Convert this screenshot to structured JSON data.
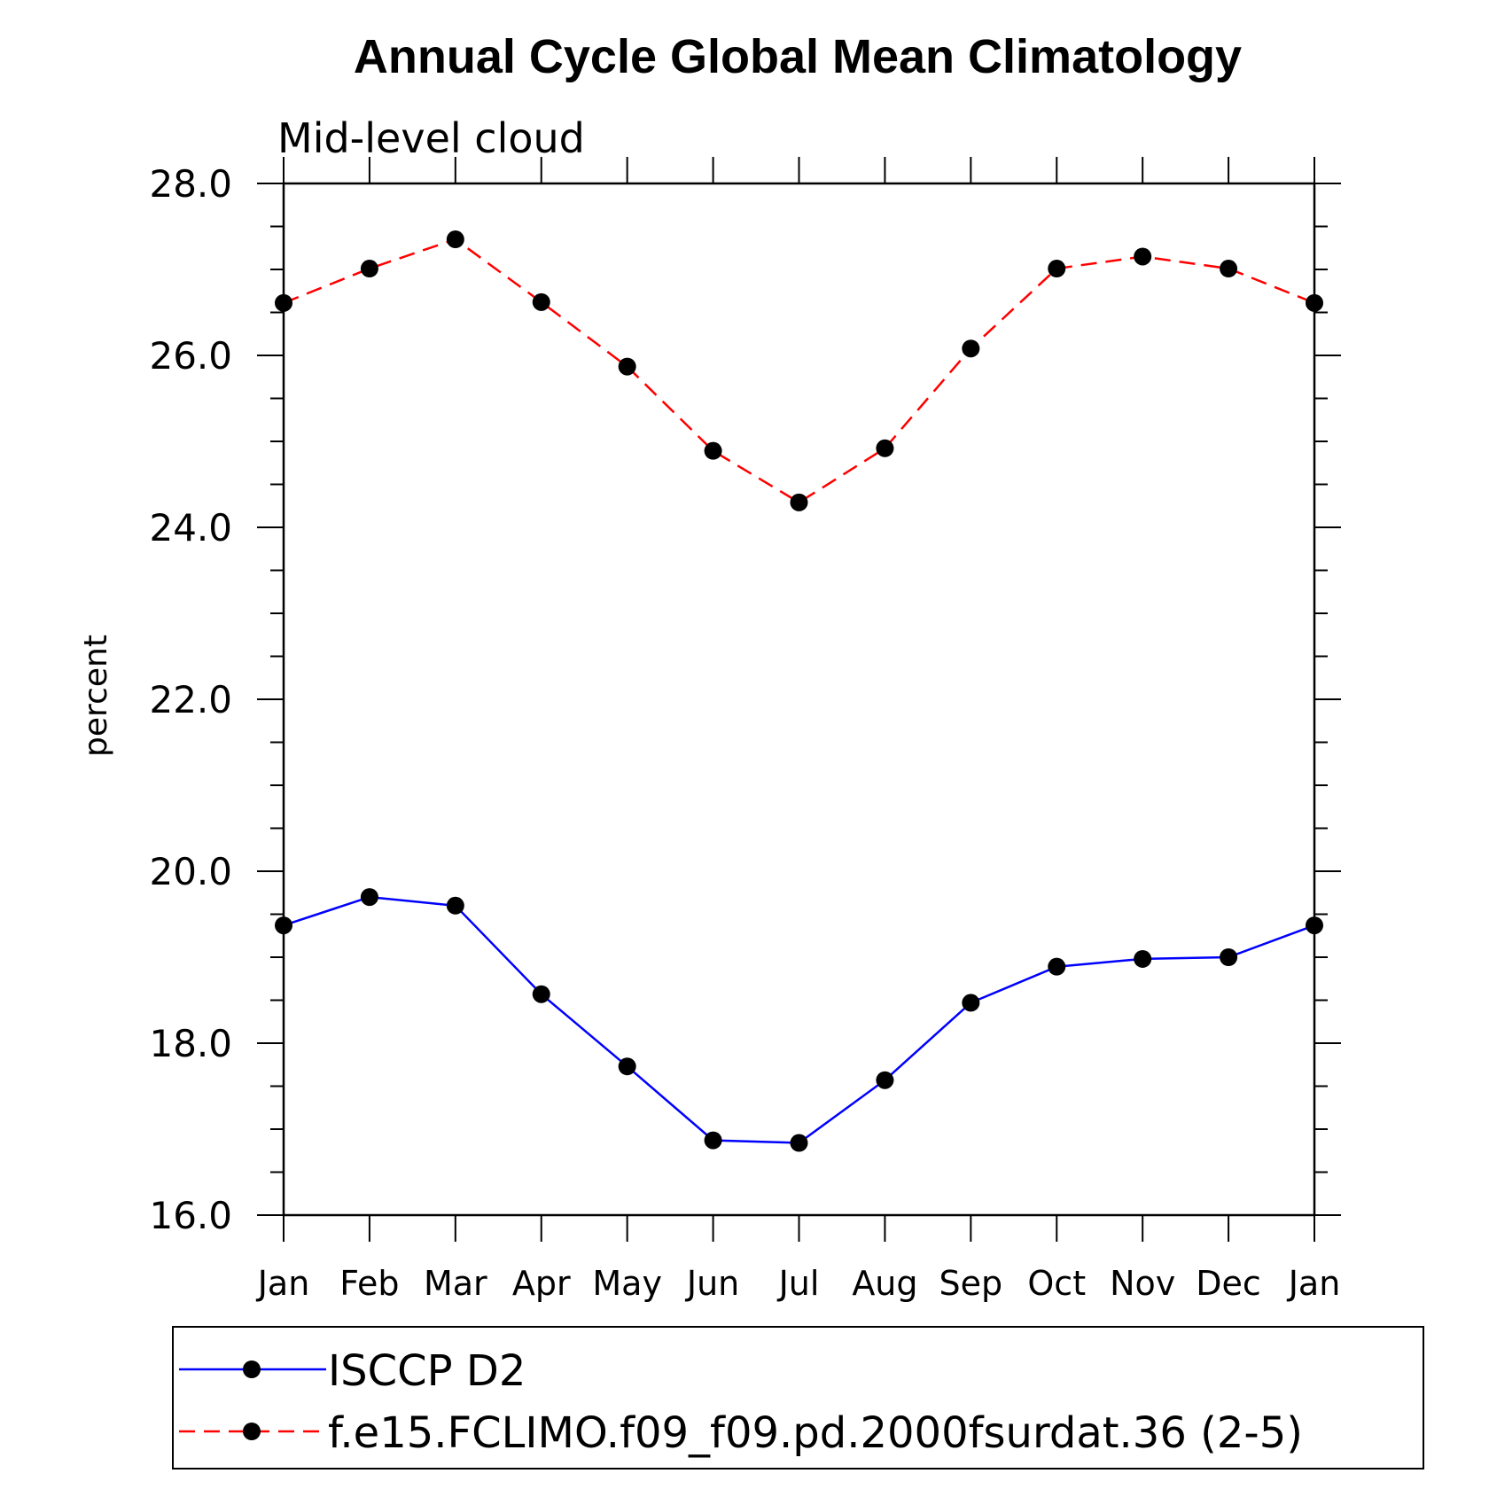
{
  "chart_data": {
    "type": "line",
    "title": "Annual Cycle Global Mean Climatology",
    "subtitle": "Mid-level cloud",
    "xlabel": "",
    "ylabel": "percent",
    "ylim": [
      16.0,
      28.0
    ],
    "yticks": [
      "16.0",
      "18.0",
      "20.0",
      "22.0",
      "24.0",
      "26.0",
      "28.0"
    ],
    "categories": [
      "Jan",
      "Feb",
      "Mar",
      "Apr",
      "May",
      "Jun",
      "Jul",
      "Aug",
      "Sep",
      "Oct",
      "Nov",
      "Dec",
      "Jan"
    ],
    "series": [
      {
        "name": "ISCCP D2",
        "color": "#0000ff",
        "dash": "solid",
        "values": [
          19.37,
          19.7,
          19.6,
          18.57,
          17.73,
          16.87,
          16.84,
          17.57,
          18.47,
          18.89,
          18.98,
          19.0,
          19.37
        ]
      },
      {
        "name": "f.e15.FCLIMO.f09_f09.pd.2000fsurdat.36 (2-5)",
        "color": "#ff0000",
        "dash": "dashed",
        "values": [
          26.61,
          27.01,
          27.35,
          26.62,
          25.87,
          24.89,
          24.29,
          24.92,
          26.08,
          27.01,
          27.15,
          27.01,
          26.61
        ]
      }
    ],
    "legend_position": "bottom"
  }
}
